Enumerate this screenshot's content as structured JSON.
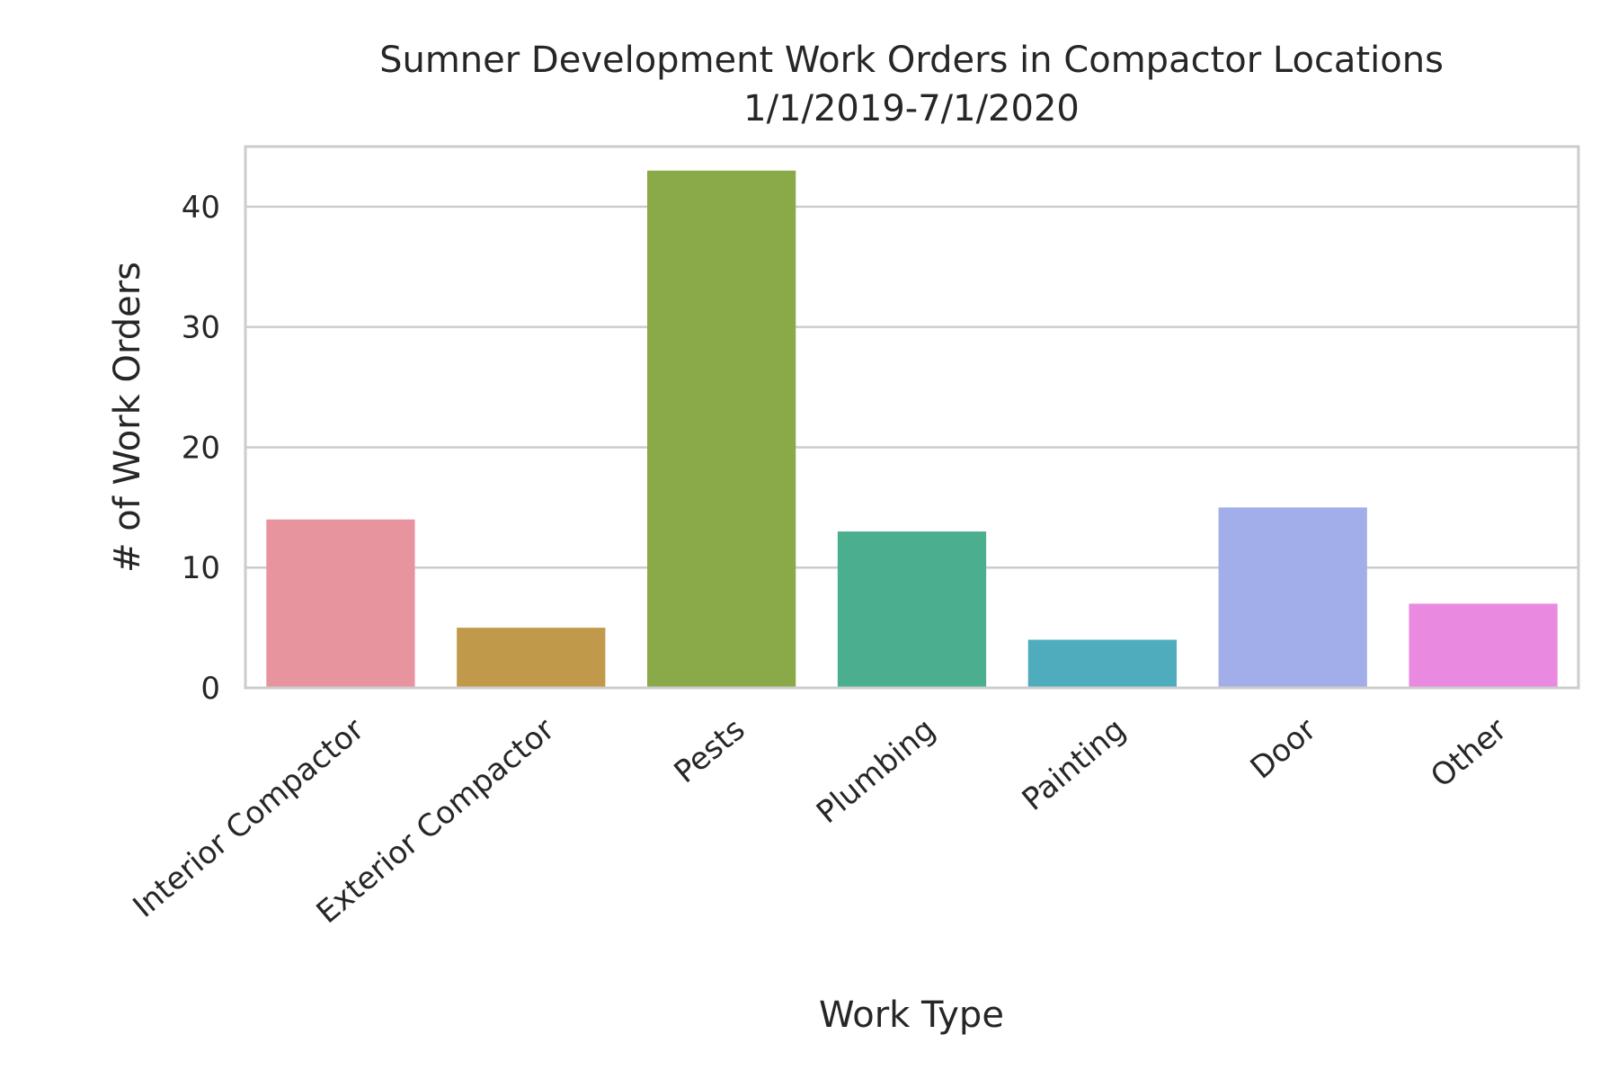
{
  "chart_data": {
    "type": "bar",
    "title": "Sumner Development Work Orders in Compactor Locations",
    "subtitle": "1/1/2019-7/1/2020",
    "xlabel": "Work Type",
    "ylabel": "# of Work Orders",
    "categories": [
      "Interior Compactor",
      "Exterior Compactor",
      "Pests",
      "Plumbing",
      "Painting",
      "Door",
      "Other"
    ],
    "values": [
      14,
      5,
      43,
      13,
      4,
      15,
      7
    ],
    "colors": [
      "#e8949f",
      "#c0994a",
      "#8aa948",
      "#4bae8f",
      "#4eacbc",
      "#a2aee9",
      "#e98ae0"
    ],
    "yticks": [
      0,
      10,
      20,
      30,
      40
    ],
    "ylim": [
      0,
      45
    ],
    "grid": true,
    "legend": false
  }
}
